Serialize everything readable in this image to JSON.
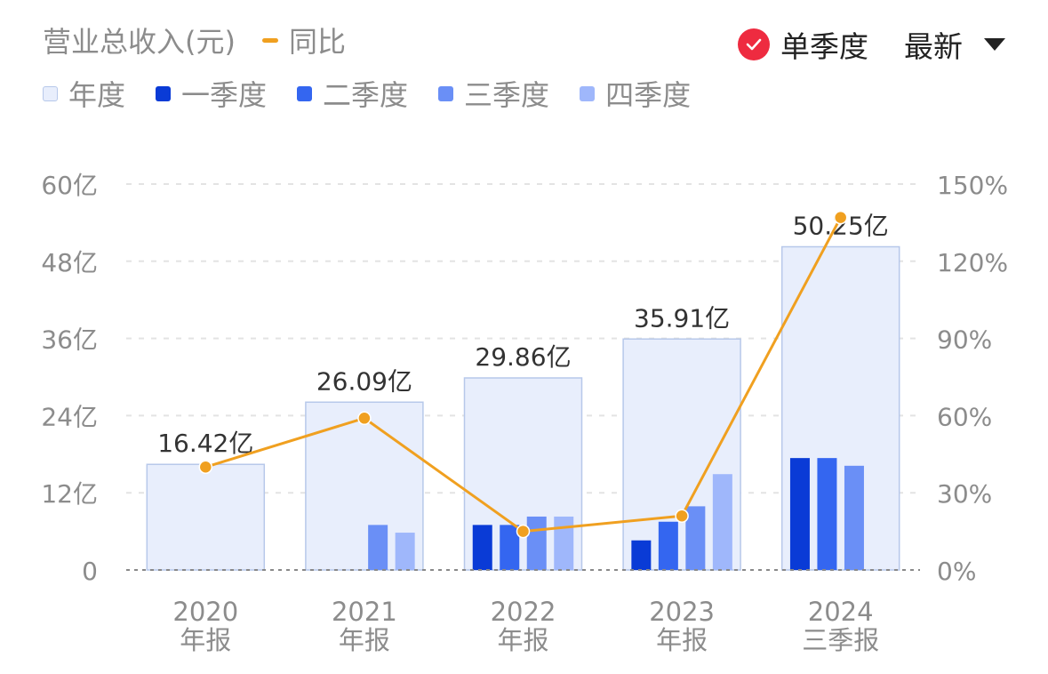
{
  "header": {
    "title": "营业总收入(元)",
    "yoy_label": "同比",
    "single_quarter_label": "单季度",
    "latest_label": "最新"
  },
  "legend": [
    {
      "label": "年度",
      "color": "#e8eefc",
      "border": "#b7c8ea"
    },
    {
      "label": "一季度",
      "color": "#0a3bd6"
    },
    {
      "label": "二季度",
      "color": "#3466f0"
    },
    {
      "label": "三季度",
      "color": "#6a8ff6"
    },
    {
      "label": "四季度",
      "color": "#9fb7fb"
    }
  ],
  "chart_data": {
    "type": "bar",
    "categories": [
      "2020\n年报",
      "2021\n年报",
      "2022\n年报",
      "2023\n年报",
      "2024\n三季报"
    ],
    "annual": [
      16.42,
      26.09,
      29.86,
      35.91,
      50.25
    ],
    "annual_labels": [
      "16.42亿",
      "26.09亿",
      "29.86亿",
      "35.91亿",
      "50.25亿"
    ],
    "quarters": [
      [
        null,
        null,
        null,
        null
      ],
      [
        null,
        null,
        7.0,
        5.8
      ],
      [
        7.0,
        7.0,
        8.3,
        8.3
      ],
      [
        4.6,
        7.5,
        9.9,
        14.9
      ],
      [
        17.4,
        17.4,
        16.2,
        null
      ]
    ],
    "yoy": [
      40,
      59,
      15,
      21,
      137
    ],
    "ylim": [
      0,
      60
    ],
    "y_ticks": [
      "0",
      "12亿",
      "24亿",
      "36亿",
      "48亿",
      "60亿"
    ],
    "y2lim": [
      0,
      150
    ],
    "y2_ticks": [
      "0%",
      "30%",
      "60%",
      "90%",
      "120%",
      "150%"
    ],
    "colors": {
      "annual": "#e8eefc",
      "annual_border": "#b7c8ea",
      "q1": "#0a3bd6",
      "q2": "#3466f0",
      "q3": "#6a8ff6",
      "q4": "#9fb7fb",
      "yoy": "#f0a020",
      "grid": "#e3e3e3",
      "axis_text": "#8c8c8c"
    }
  }
}
